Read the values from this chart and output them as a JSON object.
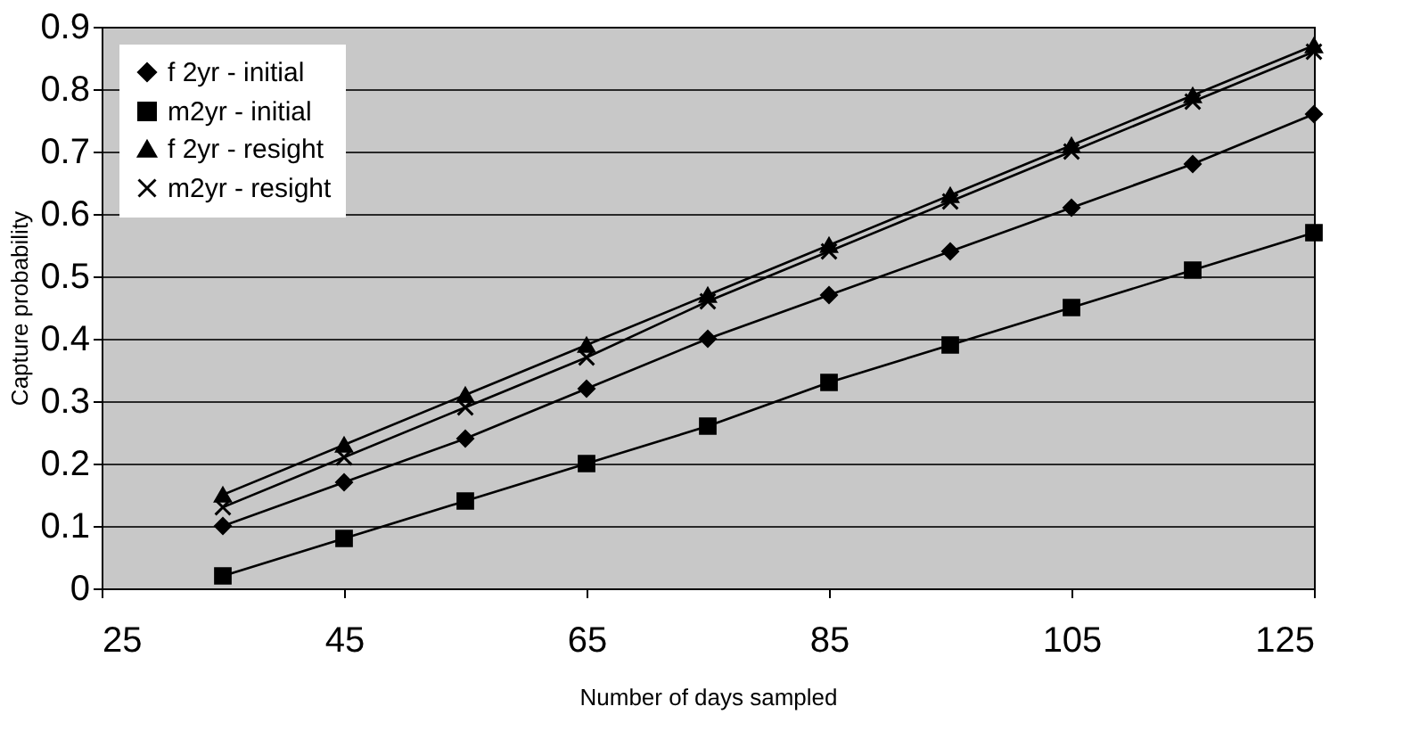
{
  "chart_data": {
    "type": "line",
    "xlabel": "Number of days sampled",
    "ylabel": "Capture probability",
    "x": [
      35,
      45,
      55,
      65,
      75,
      85,
      95,
      105,
      115,
      125
    ],
    "series": [
      {
        "name": "f 2yr - initial",
        "color": "#000000",
        "marker": "diamond",
        "values": [
          0.1,
          0.17,
          0.24,
          0.32,
          0.4,
          0.47,
          0.54,
          0.61,
          0.68,
          0.76
        ]
      },
      {
        "name": "m2yr - initial",
        "color": "#000000",
        "marker": "square",
        "values": [
          0.02,
          0.08,
          0.14,
          0.2,
          0.26,
          0.33,
          0.39,
          0.45,
          0.51,
          0.57
        ]
      },
      {
        "name": "f 2yr - resight",
        "color": "#000000",
        "marker": "triangle",
        "values": [
          0.15,
          0.23,
          0.31,
          0.39,
          0.47,
          0.55,
          0.63,
          0.71,
          0.79,
          0.87
        ]
      },
      {
        "name": "m2yr - resight",
        "color": "#000000",
        "marker": "cross",
        "values": [
          0.13,
          0.21,
          0.29,
          0.37,
          0.46,
          0.54,
          0.62,
          0.7,
          0.78,
          0.86
        ]
      }
    ],
    "xlim": [
      25,
      125
    ],
    "xticks": [
      25,
      45,
      65,
      85,
      105,
      125
    ],
    "ylim": [
      0,
      0.9
    ],
    "yticks": [
      0,
      0.1,
      0.2,
      0.3,
      0.4,
      0.5,
      0.6,
      0.7,
      0.8,
      0.9
    ],
    "grid": "y",
    "legend": "top left",
    "line_style": "solid"
  }
}
